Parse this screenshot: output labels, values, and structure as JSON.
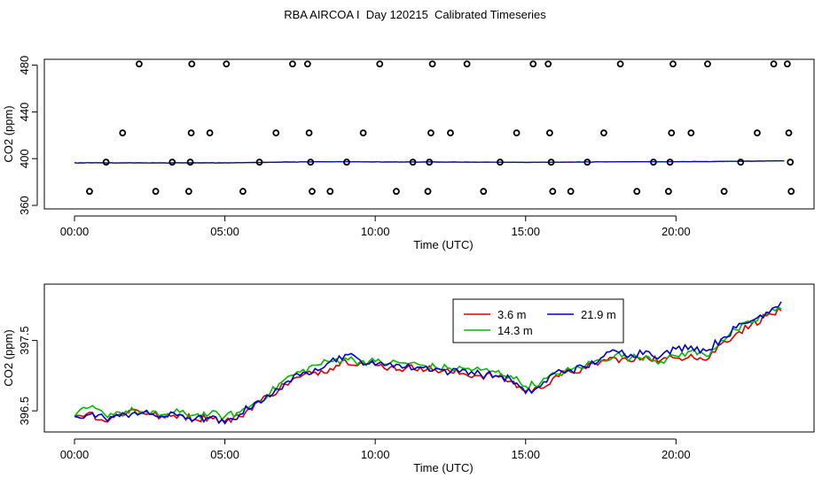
{
  "title": "RBA AIRCOA I  Day 120215  Calibrated Timeseries",
  "chart_data": [
    {
      "type": "scatter",
      "xlabel": "Time (UTC)",
      "ylabel": "CO2 (ppm)",
      "xlim": [
        0,
        24
      ],
      "ylim": [
        357,
        485
      ],
      "xticks": [
        0,
        5,
        10,
        15,
        20
      ],
      "xtick_labels": [
        "00:00",
        "05:00",
        "10:00",
        "15:00",
        "20:00"
      ],
      "yticks": [
        360,
        400,
        440,
        480
      ],
      "ytick_labels": [
        "360",
        "400",
        "440",
        "480"
      ],
      "grid": false,
      "legend": "none",
      "points": {
        "name": "calibration",
        "x": [
          0.5,
          1.05,
          1.6,
          2.15,
          2.7,
          3.25,
          3.8,
          3.85,
          3.88,
          3.9,
          4.5,
          5.05,
          5.6,
          6.15,
          6.7,
          7.25,
          7.75,
          7.8,
          7.85,
          7.9,
          8.5,
          9.05,
          9.6,
          10.15,
          10.7,
          11.25,
          11.75,
          11.8,
          11.85,
          11.9,
          12.5,
          13.05,
          13.6,
          14.15,
          14.7,
          15.25,
          15.75,
          15.8,
          15.85,
          15.9,
          16.5,
          17.05,
          17.6,
          18.15,
          18.7,
          19.25,
          19.75,
          19.8,
          19.85,
          19.9,
          20.5,
          21.05,
          21.6,
          22.15,
          22.7,
          23.25,
          23.7,
          23.75,
          23.8,
          23.83
        ],
        "y": [
          372,
          397,
          422,
          481,
          372,
          397,
          372,
          397,
          422,
          481,
          422,
          481,
          372,
          397,
          422,
          481,
          481,
          422,
          397,
          372,
          372,
          397,
          422,
          481,
          372,
          397,
          372,
          397,
          422,
          481,
          422,
          481,
          372,
          397,
          422,
          481,
          481,
          422,
          397,
          372,
          372,
          397,
          422,
          481,
          372,
          397,
          372,
          397,
          422,
          481,
          422,
          481,
          372,
          397,
          422,
          481,
          481,
          422,
          397,
          372
        ]
      },
      "lines": {
        "x": [
          0,
          24
        ],
        "colors": [
          "#dd0000",
          "#00bb00",
          "#0000cc"
        ],
        "anchors": [
          [
            0,
            396.4
          ],
          [
            5,
            396.4
          ],
          [
            6,
            396.7
          ],
          [
            7,
            397.1
          ],
          [
            8.8,
            397.4
          ],
          [
            10,
            397.2
          ],
          [
            12,
            397.1
          ],
          [
            14,
            397.0
          ],
          [
            15,
            396.8
          ],
          [
            16,
            397.0
          ],
          [
            18,
            397.3
          ],
          [
            20,
            397.4
          ],
          [
            21,
            397.5
          ],
          [
            22,
            397.7
          ],
          [
            23,
            398.0
          ],
          [
            23.7,
            398.2
          ]
        ]
      }
    },
    {
      "type": "line",
      "xlabel": "Time (UTC)",
      "ylabel": "CO2 (ppm)",
      "xlim": [
        0,
        24
      ],
      "ylim": [
        396.2,
        398.3
      ],
      "xticks": [
        0,
        5,
        10,
        15,
        20
      ],
      "xtick_labels": [
        "00:00",
        "05:00",
        "10:00",
        "15:00",
        "20:00"
      ],
      "yticks": [
        396.5,
        397.5
      ],
      "ytick_labels": [
        "396.5",
        "397.5"
      ],
      "grid": false,
      "legend": "top-center",
      "series": [
        {
          "name": "3.6 m",
          "color": "#dd0000",
          "x": [
            0,
            0.5,
            1,
            1.5,
            2,
            2.5,
            3,
            3.5,
            4,
            4.5,
            5,
            5.5,
            6,
            6.5,
            7,
            7.5,
            8,
            8.5,
            9,
            9.5,
            10,
            10.5,
            11,
            11.5,
            12,
            12.5,
            13,
            13.5,
            14,
            14.5,
            15,
            15.5,
            16,
            16.5,
            17,
            17.5,
            18,
            18.5,
            19,
            19.5,
            20,
            20.5,
            21,
            21.5,
            22,
            22.5,
            23,
            23.5
          ],
          "y": [
            396.42,
            396.48,
            396.35,
            396.45,
            396.52,
            396.46,
            396.4,
            396.45,
            396.38,
            396.42,
            396.35,
            396.42,
            396.6,
            396.72,
            396.88,
            396.98,
            397.05,
            397.1,
            397.22,
            397.18,
            397.15,
            397.12,
            397.1,
            397.12,
            397.08,
            397.05,
            397.02,
            397.0,
            397.0,
            396.92,
            396.78,
            396.82,
            397.0,
            397.05,
            397.1,
            397.2,
            397.25,
            397.2,
            397.28,
            397.22,
            397.25,
            397.3,
            397.22,
            397.45,
            397.6,
            397.72,
            397.85,
            397.92
          ]
        },
        {
          "name": "14.3 m",
          "color": "#00bb00",
          "x": [
            0,
            0.5,
            1,
            1.5,
            2,
            2.5,
            3,
            3.5,
            4,
            4.5,
            5,
            5.5,
            6,
            6.5,
            7,
            7.5,
            8,
            8.5,
            9,
            9.5,
            10,
            10.5,
            11,
            11.5,
            12,
            12.5,
            13,
            13.5,
            14,
            14.5,
            15,
            15.5,
            16,
            16.5,
            17,
            17.5,
            18,
            18.5,
            19,
            19.5,
            20,
            20.5,
            21,
            21.5,
            22,
            22.5,
            23,
            23.5
          ],
          "y": [
            396.42,
            396.55,
            396.45,
            396.48,
            396.5,
            396.45,
            396.45,
            396.48,
            396.44,
            396.46,
            396.42,
            396.48,
            396.62,
            396.75,
            396.95,
            397.05,
            397.15,
            397.2,
            397.25,
            397.2,
            397.2,
            397.18,
            397.18,
            397.15,
            397.12,
            397.1,
            397.1,
            397.08,
            397.05,
            397.0,
            396.85,
            396.9,
            397.02,
            397.08,
            397.15,
            397.22,
            397.3,
            397.25,
            397.28,
            397.2,
            397.28,
            397.35,
            397.28,
            397.5,
            397.65,
            397.75,
            397.88,
            397.95
          ]
        },
        {
          "name": "21.9 m",
          "color": "#0000cc",
          "x": [
            0,
            0.5,
            1,
            1.5,
            2,
            2.5,
            3,
            3.5,
            4,
            4.5,
            5,
            5.5,
            6,
            6.5,
            7,
            7.5,
            8,
            8.5,
            9,
            9.5,
            10,
            10.5,
            11,
            11.5,
            12,
            12.5,
            13,
            13.5,
            14,
            14.5,
            15,
            15.5,
            16,
            16.5,
            17,
            17.5,
            18,
            18.5,
            19,
            19.5,
            20,
            20.5,
            21,
            21.5,
            22,
            22.5,
            23,
            23.5
          ],
          "y": [
            396.42,
            396.45,
            396.4,
            396.42,
            396.48,
            396.45,
            396.42,
            396.45,
            396.38,
            396.4,
            396.32,
            396.45,
            396.62,
            396.7,
            396.9,
            397.0,
            397.1,
            397.2,
            397.3,
            397.22,
            397.15,
            397.18,
            397.12,
            397.12,
            397.1,
            397.05,
            397.08,
            397.02,
            397.0,
            396.95,
            396.75,
            396.85,
            397.05,
            397.08,
            397.12,
            397.25,
            397.35,
            397.3,
            397.35,
            397.28,
            397.38,
            397.42,
            397.35,
            397.52,
            397.68,
            397.78,
            397.9,
            398.05
          ]
        }
      ]
    }
  ]
}
